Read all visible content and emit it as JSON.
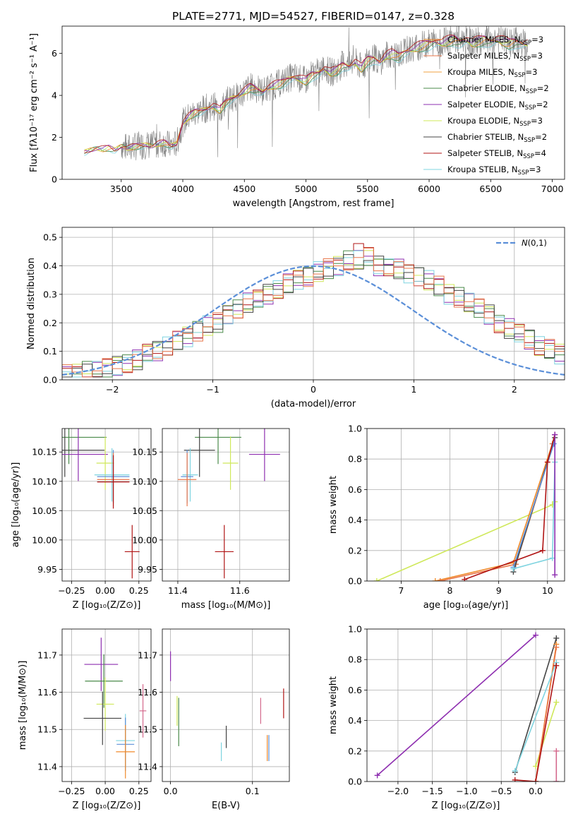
{
  "figure": {
    "title": "PLATE=2771, MJD=54527, FIBERID=0147, z=0.328",
    "colors": [
      "#f08a2a",
      "#e8774b",
      "#5b8fd8",
      "#4a8a4a",
      "#8e2fb0",
      "#cfe85a",
      "#444444",
      "#b01414",
      "#7fd4e0",
      "#d4688c"
    ]
  },
  "chart_data": [
    {
      "id": "spectrum",
      "type": "line",
      "xlabel": "wavelength [Angstrom, rest frame]",
      "ylabel": "Flux [fλ10⁻¹⁷ erg cm⁻² s⁻¹ A⁻¹]",
      "xlim": [
        3020,
        7100
      ],
      "ylim": [
        0,
        7.3
      ],
      "xticks": [
        3500,
        4000,
        4500,
        5000,
        5500,
        6000,
        6500,
        7000
      ],
      "yticks": [
        0,
        2,
        4,
        6
      ],
      "legend": [
        {
          "name": "Chabrier MILES, N",
          "sub": "SSP",
          "tail": "=3",
          "color": "#f08a2a"
        },
        {
          "name": "Salpeter MILES, N",
          "sub": "SSP",
          "tail": "=3",
          "color": "#e8774b"
        },
        {
          "name": "Kroupa MILES, N",
          "sub": "SSP",
          "tail": "=3",
          "color": "#f0a040"
        },
        {
          "name": "Chabrier ELODIE, N",
          "sub": "SSP",
          "tail": "=2",
          "color": "#4a8a4a"
        },
        {
          "name": "Salpeter ELODIE, N",
          "sub": "SSP",
          "tail": "=2",
          "color": "#8e2fb0"
        },
        {
          "name": "Kroupa ELODIE, N",
          "sub": "SSP",
          "tail": "=3",
          "color": "#cfe85a"
        },
        {
          "name": "Chabrier STELIB, N",
          "sub": "SSP",
          "tail": "=2",
          "color": "#444444"
        },
        {
          "name": "Salpeter STELIB, N",
          "sub": "SSP",
          "tail": "=4",
          "color": "#b01414"
        },
        {
          "name": "Kroupa STELIB, N",
          "sub": "SSP",
          "tail": "=3",
          "color": "#7fd4e0"
        }
      ],
      "model_x": [
        3200,
        3250,
        3300,
        3350,
        3400,
        3450,
        3500,
        3550,
        3600,
        3650,
        3700,
        3750,
        3800,
        3850,
        3900,
        3950,
        4000,
        4050,
        4100,
        4150,
        4200,
        4250,
        4300,
        4350,
        4400,
        4450,
        4500,
        4550,
        4600,
        4650,
        4700,
        4750,
        4800,
        4850,
        4900,
        4950,
        5000,
        5050,
        5100,
        5150,
        5200,
        5250,
        5300,
        5350,
        5400,
        5450,
        5500,
        5550,
        5600,
        5650,
        5700,
        5750,
        5800,
        5850,
        5900,
        5950,
        6000,
        6050,
        6100,
        6150,
        6200,
        6250,
        6300,
        6350,
        6400,
        6450,
        6500,
        6550,
        6600,
        6650,
        6700,
        6750,
        6800
      ],
      "model_y": [
        1.3,
        1.4,
        1.5,
        1.45,
        1.5,
        1.4,
        1.6,
        1.5,
        1.55,
        1.6,
        1.65,
        1.6,
        1.7,
        1.75,
        1.6,
        1.7,
        2.7,
        3.0,
        3.2,
        3.3,
        3.4,
        3.5,
        3.3,
        3.7,
        3.9,
        4.0,
        4.2,
        4.4,
        4.3,
        4.2,
        4.4,
        4.5,
        4.6,
        4.8,
        4.9,
        4.8,
        4.7,
        5.0,
        5.1,
        5.3,
        5.1,
        5.2,
        5.5,
        5.4,
        5.6,
        5.3,
        5.7,
        5.8,
        5.6,
        5.9,
        6.0,
        5.9,
        6.1,
        6.2,
        6.3,
        6.4,
        6.5,
        6.6,
        6.5,
        6.6,
        6.7,
        6.6,
        6.7,
        6.5,
        6.6,
        6.7,
        6.6,
        6.7,
        6.6,
        6.5,
        6.6,
        6.5,
        6.5
      ]
    },
    {
      "id": "residuals",
      "type": "histogram",
      "xlabel": "(data-model)/error",
      "ylabel": "Normed distribution",
      "xlim": [
        -2.5,
        2.5
      ],
      "ylim": [
        0,
        0.535
      ],
      "xticks": [
        -2,
        -1,
        0,
        1,
        2
      ],
      "yticks": [
        0.0,
        0.1,
        0.2,
        0.3,
        0.4,
        0.5
      ],
      "legend": [
        {
          "name": "N(0,1)",
          "color": "#5b8fd8"
        }
      ],
      "bin_edges_start": -2.5,
      "bin_width": 0.1,
      "counts": [
        0.02,
        0.02,
        0.03,
        0.03,
        0.04,
        0.05,
        0.06,
        0.07,
        0.09,
        0.1,
        0.12,
        0.14,
        0.15,
        0.17,
        0.19,
        0.2,
        0.23,
        0.25,
        0.27,
        0.28,
        0.3,
        0.32,
        0.34,
        0.35,
        0.36,
        0.38,
        0.39,
        0.4,
        0.42,
        0.42,
        0.43,
        0.4,
        0.4,
        0.39,
        0.37,
        0.36,
        0.35,
        0.33,
        0.3,
        0.29,
        0.27,
        0.25,
        0.23,
        0.2,
        0.18,
        0.16,
        0.14,
        0.12,
        0.11,
        0.09
      ]
    },
    {
      "id": "age_vs_Z",
      "type": "errorbar",
      "xlabel": "Z [log₁₀(Z/Z⊙)]",
      "ylabel": "age  [log₁₀(age/yr)]",
      "xlim": [
        -0.32,
        0.34
      ],
      "ylim": [
        9.93,
        10.19
      ],
      "xticks": [
        -0.25,
        0.0,
        0.25
      ],
      "yticks": [
        9.95,
        10.0,
        10.05,
        10.1,
        10.15
      ],
      "points": [
        {
          "x": -0.27,
          "y": 10.175,
          "xerr": 0.56,
          "color": "#4a8a4a"
        },
        {
          "x": -0.3,
          "y": 10.153,
          "xerr": 0.59,
          "color": "#444444"
        },
        {
          "x": -0.2,
          "y": 10.146,
          "xerr": 0.44,
          "color": "#8e2fb0"
        },
        {
          "x": 0.0,
          "y": 10.131,
          "xerr": 0.13,
          "color": "#cfe85a"
        },
        {
          "x": 0.05,
          "y": 10.111,
          "xerr": 0.26,
          "color": "#7fd4e0"
        },
        {
          "x": 0.06,
          "y": 10.108,
          "xerr": 0.24,
          "color": "#5b8fd8"
        },
        {
          "x": 0.06,
          "y": 10.103,
          "xerr": 0.24,
          "color": "#e8774b"
        },
        {
          "x": 0.06,
          "y": 10.099,
          "xerr": 0.24,
          "color": "#b01414"
        },
        {
          "x": 0.2,
          "y": 9.98,
          "xerr": 0.11,
          "color": "#b01414"
        }
      ]
    },
    {
      "id": "age_vs_mass",
      "type": "errorbar",
      "xlabel": "mass [log₁₀(M/M⊙)]",
      "ylabel": "",
      "xlim": [
        11.35,
        11.76
      ],
      "ylim": [
        9.93,
        10.19
      ],
      "xticks": [
        11.4,
        11.6
      ],
      "yticks": [
        9.95,
        10.0,
        10.05,
        10.1,
        10.15
      ],
      "points": [
        {
          "x": 11.53,
          "y": 10.175,
          "xerr": 0.15,
          "color": "#4a8a4a"
        },
        {
          "x": 11.47,
          "y": 10.153,
          "xerr": 0.1,
          "color": "#444444"
        },
        {
          "x": 11.68,
          "y": 10.146,
          "xerr": 0.1,
          "color": "#8e2fb0"
        },
        {
          "x": 11.57,
          "y": 10.131,
          "xerr": 0.05,
          "color": "#cfe85a"
        },
        {
          "x": 11.44,
          "y": 10.111,
          "xerr": 0.05,
          "color": "#7fd4e0"
        },
        {
          "x": 11.43,
          "y": 10.108,
          "xerr": 0.04,
          "color": "#5b8fd8"
        },
        {
          "x": 11.43,
          "y": 10.103,
          "xerr": 0.06,
          "color": "#e8774b"
        },
        {
          "x": 11.55,
          "y": 9.98,
          "xerr": 0.06,
          "color": "#b01414"
        }
      ]
    },
    {
      "id": "weight_vs_age",
      "type": "line",
      "xlabel": "age  [log₁₀(age/yr)]",
      "ylabel": "mass weight",
      "xlim": [
        6.3,
        10.35
      ],
      "ylim": [
        0,
        1.0
      ],
      "xticks": [
        7,
        8,
        9,
        10
      ],
      "yticks": [
        0.0,
        0.2,
        0.4,
        0.6,
        0.8,
        1.0
      ],
      "series": [
        {
          "color": "#cfe85a",
          "x": [
            6.5,
            10.1,
            10.15
          ],
          "y": [
            0.0,
            0.5,
            0.52
          ]
        },
        {
          "color": "#f08a2a",
          "x": [
            7.7,
            9.3,
            10.1
          ],
          "y": [
            0.0,
            0.12,
            0.9
          ]
        },
        {
          "color": "#e8774b",
          "x": [
            7.8,
            9.35,
            10.12
          ],
          "y": [
            0.0,
            0.11,
            0.9
          ]
        },
        {
          "color": "#444444",
          "x": [
            9.3,
            10.15
          ],
          "y": [
            0.06,
            0.94
          ]
        },
        {
          "color": "#5b8fd8",
          "x": [
            9.3,
            10.13
          ],
          "y": [
            0.09,
            0.9
          ]
        },
        {
          "color": "#7fd4e0",
          "x": [
            9.3,
            10.1,
            10.15
          ],
          "y": [
            0.08,
            0.15,
            0.78
          ]
        },
        {
          "color": "#b01414",
          "x": [
            8.3,
            9.9,
            10.0,
            10.15
          ],
          "y": [
            0.01,
            0.2,
            0.78,
            0.96
          ]
        },
        {
          "color": "#8e2fb0",
          "x": [
            10.15,
            10.15
          ],
          "y": [
            0.04,
            0.96
          ]
        }
      ]
    },
    {
      "id": "mass_vs_Z",
      "type": "errorbar",
      "xlabel": "Z [log₁₀(Z/Z⊙)]",
      "ylabel": "mass [log₁₀(M/M⊙)]",
      "xlim": [
        -0.32,
        0.34
      ],
      "ylim": [
        11.36,
        11.77
      ],
      "xticks": [
        -0.25,
        0.0,
        0.25
      ],
      "yticks": [
        11.4,
        11.5,
        11.6,
        11.7
      ],
      "points": [
        {
          "x": -0.03,
          "y": 11.675,
          "xerr": 0.25,
          "color": "#8e2fb0"
        },
        {
          "x": -0.01,
          "y": 11.63,
          "xerr": 0.28,
          "color": "#4a8a4a"
        },
        {
          "x": 0.0,
          "y": 11.568,
          "xerr": 0.13,
          "color": "#cfe85a"
        },
        {
          "x": 0.28,
          "y": 11.55,
          "xerr": 0.05,
          "color": "#d4688c"
        },
        {
          "x": -0.02,
          "y": 11.53,
          "xerr": 0.28,
          "color": "#444444"
        },
        {
          "x": 0.15,
          "y": 11.47,
          "xerr": 0.14,
          "color": "#7fd4e0"
        },
        {
          "x": 0.15,
          "y": 11.46,
          "xerr": 0.13,
          "color": "#5b8fd8"
        },
        {
          "x": 0.15,
          "y": 11.44,
          "xerr": 0.14,
          "color": "#f08a2a"
        }
      ]
    },
    {
      "id": "mass_vs_ebv",
      "type": "errorbar",
      "xlabel": "E(B-V)",
      "ylabel": "",
      "xlim": [
        -0.01,
        0.145
      ],
      "ylim": [
        11.36,
        11.77
      ],
      "xticks": [
        0.0,
        0.1
      ],
      "yticks": [
        11.4,
        11.5,
        11.6,
        11.7
      ],
      "points": [
        {
          "x": 0.0,
          "y": 11.67,
          "yerr": 0.08,
          "color": "#8e2fb0"
        },
        {
          "x": 0.01,
          "y": 11.52,
          "yerr": 0.13,
          "color": "#4a8a4a"
        },
        {
          "x": 0.008,
          "y": 11.55,
          "yerr": 0.08,
          "color": "#cfe85a"
        },
        {
          "x": 0.068,
          "y": 11.48,
          "yerr": 0.06,
          "color": "#444444"
        },
        {
          "x": 0.062,
          "y": 11.44,
          "yerr": 0.05,
          "color": "#7fd4e0"
        },
        {
          "x": 0.11,
          "y": 11.55,
          "yerr": 0.07,
          "color": "#d4688c"
        },
        {
          "x": 0.118,
          "y": 11.45,
          "yerr": 0.07,
          "color": "#f08a2a"
        },
        {
          "x": 0.12,
          "y": 11.45,
          "yerr": 0.07,
          "color": "#5b8fd8"
        },
        {
          "x": 0.138,
          "y": 11.57,
          "yerr": 0.08,
          "color": "#b01414"
        }
      ]
    },
    {
      "id": "weight_vs_Z",
      "type": "line",
      "xlabel": "Z [log₁₀(Z/Z⊙)]",
      "ylabel": "mass weight",
      "xlim": [
        -2.45,
        0.42
      ],
      "ylim": [
        0,
        1.0
      ],
      "xticks": [
        -2.0,
        -1.5,
        -1.0,
        -0.5,
        0.0
      ],
      "yticks": [
        0.0,
        0.2,
        0.4,
        0.6,
        0.8,
        1.0
      ],
      "series": [
        {
          "color": "#8e2fb0",
          "x": [
            -2.3,
            0.0
          ],
          "y": [
            0.04,
            0.96
          ]
        },
        {
          "color": "#444444",
          "x": [
            -0.3,
            0.3
          ],
          "y": [
            0.06,
            0.94
          ]
        },
        {
          "color": "#cfe85a",
          "x": [
            0.0,
            0.3
          ],
          "y": [
            0.1,
            0.52
          ]
        },
        {
          "color": "#f08a2a",
          "x": [
            0.0,
            0.3
          ],
          "y": [
            0.0,
            0.9
          ]
        },
        {
          "color": "#e8774b",
          "x": [
            0.0,
            0.3
          ],
          "y": [
            0.0,
            0.88
          ]
        },
        {
          "color": "#7fd4e0",
          "x": [
            -0.3,
            0.3
          ],
          "y": [
            0.07,
            0.78
          ]
        },
        {
          "color": "#b01414",
          "x": [
            -0.3,
            0.0,
            0.3
          ],
          "y": [
            0.01,
            0.0,
            0.76
          ]
        },
        {
          "color": "#d4688c",
          "x": [
            0.3,
            0.3
          ],
          "y": [
            0.2,
            0.0
          ]
        }
      ]
    }
  ]
}
